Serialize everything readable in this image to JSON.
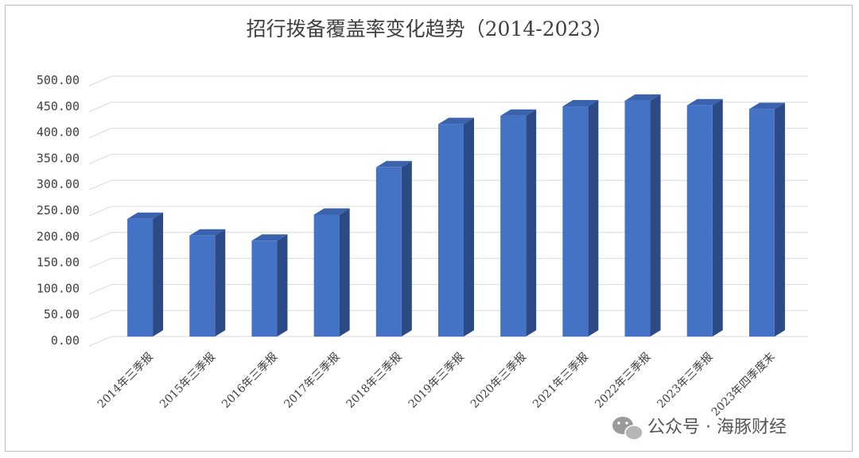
{
  "chart_data": {
    "type": "bar",
    "title": "招行拨备覆盖率变化趋势（2014-2023）",
    "categories": [
      "2014年三季报",
      "2015年三季报",
      "2016年三季报",
      "2017年三季报",
      "2018年三季报",
      "2019年三季报",
      "2020年三季报",
      "2021年三季报",
      "2022年三季报",
      "2023年三季报",
      "2023年四季度末"
    ],
    "values": [
      226,
      194,
      184,
      234,
      325,
      408,
      424,
      442,
      453,
      444,
      437
    ],
    "ylim": [
      0,
      500
    ],
    "yticks": [
      "0.00",
      "50.00",
      "100.00",
      "150.00",
      "200.00",
      "250.00",
      "300.00",
      "350.00",
      "400.00",
      "450.00",
      "500.00"
    ],
    "grid": true,
    "legend": "none",
    "colors": {
      "bar_front": "#4472c4",
      "bar_side": "#2b4a86",
      "bar_top": "#3a62ad"
    }
  },
  "watermark": {
    "icon": "wechat-icon",
    "text": "公众号 · 海豚财经"
  }
}
